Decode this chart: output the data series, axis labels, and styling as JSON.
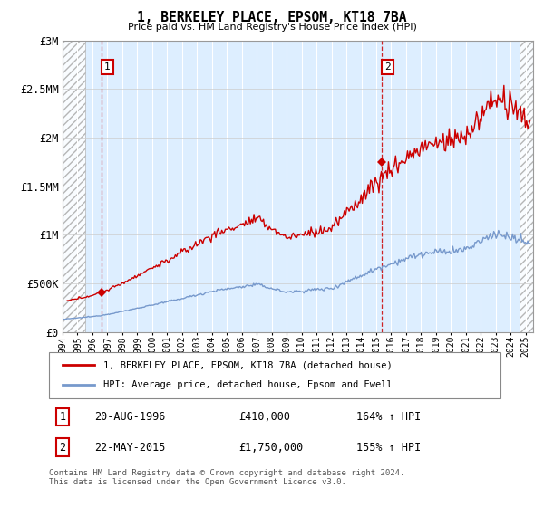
{
  "title": "1, BERKELEY PLACE, EPSOM, KT18 7BA",
  "subtitle": "Price paid vs. HM Land Registry's House Price Index (HPI)",
  "hpi_label": "HPI: Average price, detached house, Epsom and Ewell",
  "property_label": "1, BERKELEY PLACE, EPSOM, KT18 7BA (detached house)",
  "footer": "Contains HM Land Registry data © Crown copyright and database right 2024.\nThis data is licensed under the Open Government Licence v3.0.",
  "sale1_date": "20-AUG-1996",
  "sale1_price": 410000,
  "sale1_hpi": "164% ↑ HPI",
  "sale2_date": "22-MAY-2015",
  "sale2_price": 1750000,
  "sale2_hpi": "155% ↑ HPI",
  "ylim": [
    0,
    3000000
  ],
  "xlim_start": 1994.0,
  "xlim_end": 2025.5,
  "property_color": "#cc0000",
  "hpi_color": "#7799cc",
  "annotation_box_color": "#cc0000",
  "background_plot": "#ddeeff",
  "vline_color": "#cc0000",
  "sale1_year": 1996.625,
  "sale2_year": 2015.375,
  "hatch_left_end": 1995.5,
  "hatch_right_start": 2024.6
}
